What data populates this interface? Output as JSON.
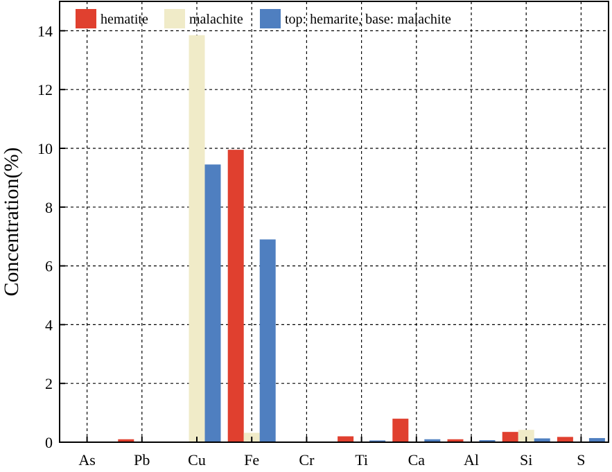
{
  "chart_data": {
    "type": "bar",
    "categories": [
      "As",
      "Pb",
      "Cu",
      "Fe",
      "Cr",
      "Ti",
      "Ca",
      "Al",
      "Si",
      "S"
    ],
    "series": [
      {
        "name": "hematite",
        "color": "#e0402f",
        "values": [
          0,
          0.1,
          0,
          9.95,
          0,
          0.2,
          0.8,
          0.1,
          0.35,
          0.18
        ]
      },
      {
        "name": "malachite",
        "color": "#f0ebc8",
        "values": [
          0,
          0,
          13.85,
          0.32,
          0,
          0,
          0,
          0,
          0.42,
          0
        ]
      },
      {
        "name": "top: hemarite, base: malachite",
        "color": "#4f7fc0",
        "values": [
          0,
          0.02,
          9.45,
          6.9,
          0,
          0.06,
          0.1,
          0.07,
          0.13,
          0.14
        ]
      }
    ],
    "title": "",
    "xlabel": "",
    "ylabel": "Concentration(%)",
    "ylim": [
      0,
      15
    ],
    "yticks": [
      0,
      2,
      4,
      6,
      8,
      10,
      12,
      14
    ],
    "grid": true,
    "grid_style": "dashed",
    "legend_position": "top-left"
  }
}
